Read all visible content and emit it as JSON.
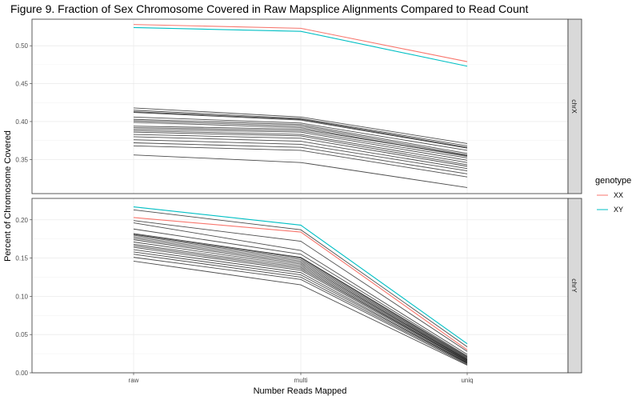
{
  "chart_data": {
    "type": "line",
    "title": "Figure 9. Fraction of Sex Chromosome Covered in Raw Mapsplice Alignments Compared to Read Count",
    "xlabel": "Number Reads Mapped",
    "ylabel": "Percent of Chromosome Covered",
    "categories": [
      "raw",
      "multi",
      "uniq"
    ],
    "legend": {
      "title": "genotype",
      "position": "right",
      "entries": [
        {
          "label": "XX",
          "color": "#F8766D"
        },
        {
          "label": "XY",
          "color": "#00BFC4"
        }
      ]
    },
    "panels": [
      {
        "strip": "chrX",
        "ylim": [
          0.305,
          0.535
        ],
        "yticks": [
          0.35,
          0.4,
          0.45,
          0.5
        ],
        "yticklabels": [
          "0.35",
          "0.40",
          "0.45",
          "0.50"
        ],
        "series": [
          {
            "name": "XX",
            "color": "#F8766D",
            "values": [
              0.528,
              0.523,
              0.479
            ]
          },
          {
            "name": "XY",
            "color": "#00BFC4",
            "values": [
              0.524,
              0.519,
              0.473
            ]
          }
        ],
        "other_samples": [
          [
            0.418,
            0.406,
            0.371
          ],
          [
            0.415,
            0.404,
            0.368
          ],
          [
            0.413,
            0.403,
            0.366
          ],
          [
            0.412,
            0.402,
            0.365
          ],
          [
            0.406,
            0.398,
            0.362
          ],
          [
            0.403,
            0.396,
            0.358
          ],
          [
            0.401,
            0.394,
            0.356
          ],
          [
            0.399,
            0.392,
            0.354
          ],
          [
            0.394,
            0.39,
            0.355
          ],
          [
            0.392,
            0.388,
            0.352
          ],
          [
            0.39,
            0.386,
            0.349
          ],
          [
            0.388,
            0.383,
            0.346
          ],
          [
            0.386,
            0.381,
            0.343
          ],
          [
            0.383,
            0.378,
            0.341
          ],
          [
            0.38,
            0.374,
            0.338
          ],
          [
            0.376,
            0.37,
            0.335
          ],
          [
            0.372,
            0.366,
            0.331
          ],
          [
            0.368,
            0.362,
            0.327
          ],
          [
            0.356,
            0.346,
            0.313
          ]
        ]
      },
      {
        "strip": "chrY",
        "ylim": [
          0,
          0.228
        ],
        "yticks": [
          0.0,
          0.05,
          0.1,
          0.15,
          0.2
        ],
        "yticklabels": [
          "0.00",
          "0.05",
          "0.10",
          "0.15",
          "0.20"
        ],
        "series": [
          {
            "name": "XX",
            "color": "#F8766D",
            "values": [
              0.203,
              0.184,
              0.03
            ]
          },
          {
            "name": "XY",
            "color": "#00BFC4",
            "values": [
              0.217,
              0.193,
              0.038
            ]
          }
        ],
        "other_samples": [
          [
            0.213,
            0.187,
            0.034
          ],
          [
            0.199,
            0.172,
            0.028
          ],
          [
            0.196,
            0.16,
            0.024
          ],
          [
            0.188,
            0.155,
            0.022
          ],
          [
            0.182,
            0.151,
            0.021
          ],
          [
            0.181,
            0.15,
            0.02
          ],
          [
            0.18,
            0.148,
            0.019
          ],
          [
            0.178,
            0.146,
            0.018
          ],
          [
            0.176,
            0.144,
            0.017
          ],
          [
            0.174,
            0.142,
            0.017
          ],
          [
            0.171,
            0.14,
            0.016
          ],
          [
            0.168,
            0.138,
            0.015
          ],
          [
            0.166,
            0.136,
            0.015
          ],
          [
            0.164,
            0.134,
            0.014
          ],
          [
            0.161,
            0.131,
            0.013
          ],
          [
            0.158,
            0.128,
            0.013
          ],
          [
            0.155,
            0.125,
            0.012
          ],
          [
            0.151,
            0.122,
            0.011
          ],
          [
            0.146,
            0.115,
            0.01
          ]
        ]
      }
    ]
  }
}
